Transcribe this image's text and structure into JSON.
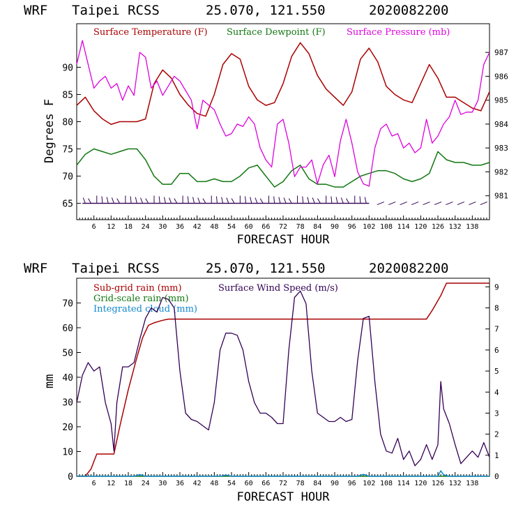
{
  "panels": [
    {
      "header": {
        "model": "WRF",
        "station": "Taipei RCSS",
        "coords": "25.070, 121.550",
        "date": "2020082200"
      },
      "ylabel": "Degrees F",
      "xlabel": "FORECAST HOUR"
    },
    {
      "header": {
        "model": "WRF",
        "station": "Taipei RCSS",
        "coords": "25.070, 121.550",
        "date": "2020082200"
      },
      "ylabel": "mm",
      "xlabel": "FORECAST HOUR"
    }
  ],
  "colors": {
    "red": "#aa0000",
    "green": "#117711",
    "magenta": "#dd00dd",
    "purple": "#330055",
    "blue": "#1188cc",
    "black": "#000000"
  },
  "chart_data": [
    {
      "type": "line",
      "xlim": [
        0,
        144
      ],
      "x_ticks": [
        6,
        12,
        18,
        24,
        30,
        36,
        42,
        48,
        54,
        60,
        66,
        72,
        78,
        84,
        90,
        96,
        102,
        108,
        114,
        120,
        126,
        132,
        138
      ],
      "ylim": [
        62,
        98
      ],
      "y_ticks": [
        65,
        70,
        75,
        80,
        85,
        90
      ],
      "y2lim": [
        980,
        988.2
      ],
      "y2_ticks": [
        981,
        982,
        983,
        984,
        985,
        986,
        987
      ],
      "legend": [
        "Surface Temperature (F)",
        "Surface Dewpoint (F)",
        "Surface Pressure (mb)"
      ],
      "series": [
        {
          "name": "Surface Temperature (F)",
          "axis": "left",
          "color": "red",
          "x": [
            0,
            3,
            6,
            9,
            12,
            15,
            18,
            21,
            24,
            27,
            30,
            33,
            36,
            39,
            42,
            45,
            48,
            51,
            54,
            57,
            60,
            63,
            66,
            69,
            72,
            75,
            78,
            81,
            84,
            87,
            90,
            93,
            96,
            99,
            102,
            105,
            108,
            111,
            114,
            117,
            120,
            123,
            126,
            129,
            132,
            135,
            138,
            141,
            144
          ],
          "values": [
            83,
            84.5,
            82,
            80.5,
            79.5,
            80,
            80,
            80,
            80.5,
            87,
            89.5,
            88,
            85,
            83,
            81.5,
            81,
            85,
            90.5,
            92.5,
            91.5,
            86.5,
            84,
            83,
            83.5,
            87,
            92,
            94.5,
            92.5,
            88.5,
            86,
            84.5,
            83,
            85.5,
            91.5,
            93.5,
            91,
            86.5,
            85,
            84,
            83.5,
            87,
            90.5,
            88,
            84.5,
            84.5,
            83.5,
            82.5,
            82,
            85.5
          ]
        },
        {
          "name": "Surface Dewpoint (F)",
          "axis": "left",
          "color": "green",
          "x": [
            0,
            3,
            6,
            9,
            12,
            15,
            18,
            21,
            24,
            27,
            30,
            33,
            36,
            39,
            42,
            45,
            48,
            51,
            54,
            57,
            60,
            63,
            66,
            69,
            72,
            75,
            78,
            81,
            84,
            87,
            90,
            93,
            96,
            99,
            102,
            105,
            108,
            111,
            114,
            117,
            120,
            123,
            126,
            129,
            132,
            135,
            138,
            141,
            144
          ],
          "values": [
            72,
            74,
            75,
            74.5,
            74,
            74.5,
            75,
            75,
            73,
            70,
            68.5,
            68.5,
            70.5,
            70.5,
            69,
            69,
            69.5,
            69,
            69,
            70,
            71.5,
            72,
            70,
            68,
            69,
            71,
            72,
            69.5,
            68.5,
            68.5,
            68,
            68,
            69,
            70,
            70.5,
            71,
            71,
            70.5,
            69.5,
            69,
            69.5,
            70.5,
            74.5,
            73,
            72.5,
            72.5,
            72,
            72,
            72.5
          ]
        },
        {
          "name": "Surface Pressure (mb)",
          "axis": "right",
          "color": "magenta",
          "x": [
            0,
            2,
            4,
            6,
            8,
            10,
            12,
            14,
            16,
            18,
            20,
            22,
            24,
            26,
            28,
            30,
            32,
            34,
            36,
            38,
            40,
            42,
            44,
            46,
            48,
            50,
            52,
            54,
            56,
            58,
            60,
            62,
            64,
            66,
            68,
            70,
            72,
            74,
            76,
            78,
            80,
            82,
            84,
            86,
            88,
            90,
            92,
            94,
            96,
            98,
            100,
            102,
            104,
            106,
            108,
            110,
            112,
            114,
            116,
            118,
            120,
            122,
            124,
            126,
            128,
            130,
            132,
            134,
            136,
            138,
            140,
            142,
            144
          ],
          "values": [
            986.5,
            987.5,
            986.5,
            985.5,
            985.8,
            986,
            985.5,
            985.7,
            985,
            985.6,
            985.2,
            987,
            986.8,
            985.5,
            985.8,
            985.2,
            985.6,
            986,
            985.8,
            985.4,
            985,
            983.8,
            985,
            984.8,
            984.6,
            984,
            983.5,
            983.6,
            984,
            983.9,
            984.3,
            984,
            983,
            982.5,
            982.2,
            984,
            984.2,
            983.2,
            981.8,
            982.2,
            982.2,
            982.5,
            981.5,
            982.3,
            982.7,
            981.8,
            983.3,
            984.2,
            983.2,
            982,
            981.5,
            981.4,
            983,
            983.8,
            984,
            983.5,
            983.6,
            983,
            983.2,
            982.8,
            983,
            984.2,
            983.2,
            983.5,
            984,
            984.3,
            985,
            984.4,
            984.5,
            984.5,
            985,
            986.5,
            987
          ]
        }
      ]
    },
    {
      "type": "line",
      "xlim": [
        0,
        144
      ],
      "x_ticks": [
        6,
        12,
        18,
        24,
        30,
        36,
        42,
        48,
        54,
        60,
        66,
        72,
        78,
        84,
        90,
        96,
        102,
        108,
        114,
        120,
        126,
        132,
        138
      ],
      "ylim": [
        0,
        80
      ],
      "y_ticks": [
        0,
        10,
        20,
        30,
        40,
        50,
        60,
        70
      ],
      "y2lim": [
        0,
        9.41
      ],
      "y2_ticks": [
        0,
        1,
        2,
        3,
        4,
        5,
        6,
        7,
        8,
        9
      ],
      "legend": [
        "Sub-grid rain (mm)",
        "Grid-scale rain (mm)",
        "Integrated cloud (mm)",
        "Surface Wind Speed (m/s)"
      ],
      "series": [
        {
          "name": "Sub-grid rain (mm)",
          "axis": "left",
          "color": "red",
          "x": [
            0,
            3,
            5,
            7,
            10,
            13,
            15,
            18,
            21,
            23,
            25,
            27,
            30,
            32,
            35,
            122,
            124,
            127,
            129,
            132,
            144
          ],
          "values": [
            0,
            0,
            3,
            9,
            9,
            9,
            20,
            35,
            48,
            56,
            61,
            62,
            63,
            63.5,
            63.5,
            63.5,
            67,
            73,
            78,
            78,
            78
          ]
        },
        {
          "name": "Grid-scale rain (mm)",
          "axis": "left",
          "color": "green",
          "x": [
            0,
            144
          ],
          "values": [
            0,
            0
          ]
        },
        {
          "name": "Integrated cloud (mm)",
          "axis": "left",
          "color": "blue",
          "x": [
            0,
            20,
            22,
            24,
            50,
            52,
            54,
            98,
            100,
            102,
            110,
            126,
            127,
            128,
            130,
            144
          ],
          "values": [
            0,
            0,
            0.7,
            0,
            0,
            0.5,
            0,
            0,
            0.8,
            0,
            0,
            0,
            2.2,
            0.6,
            0,
            0
          ]
        },
        {
          "name": "Surface Wind Speed (m/s)",
          "axis": "right",
          "color": "purple",
          "x": [
            0,
            2,
            4,
            6,
            8,
            10,
            12,
            13,
            14,
            16,
            18,
            20,
            22,
            24,
            26,
            28,
            30,
            32,
            34,
            36,
            38,
            40,
            42,
            44,
            46,
            48,
            50,
            52,
            54,
            56,
            58,
            60,
            62,
            64,
            66,
            68,
            70,
            72,
            74,
            76,
            78,
            80,
            82,
            84,
            86,
            88,
            90,
            92,
            94,
            96,
            98,
            100,
            102,
            104,
            106,
            108,
            110,
            112,
            114,
            116,
            118,
            120,
            122,
            124,
            126,
            127,
            128,
            130,
            132,
            134,
            136,
            138,
            140,
            142,
            144
          ],
          "values": [
            3.5,
            4.8,
            5.4,
            5,
            5.2,
            3.5,
            2.5,
            1.2,
            3.5,
            5.2,
            5.2,
            5.4,
            6.5,
            7.5,
            8,
            7.8,
            8.5,
            8.4,
            8,
            5,
            3,
            2.7,
            2.6,
            2.4,
            2.2,
            3.5,
            6,
            6.8,
            6.8,
            6.7,
            6,
            4.5,
            3.5,
            3,
            3,
            2.8,
            2.5,
            2.5,
            6,
            8.5,
            8.8,
            8.2,
            5,
            3,
            2.8,
            2.6,
            2.6,
            2.8,
            2.6,
            2.7,
            5.5,
            7.5,
            7.6,
            4.5,
            2,
            1.2,
            1.1,
            1.8,
            0.8,
            1.2,
            0.5,
            0.8,
            1.5,
            0.8,
            1.5,
            4.5,
            3.2,
            2.5,
            1.5,
            0.6,
            0.9,
            1.2,
            0.9,
            1.6,
            0.9
          ]
        }
      ]
    }
  ]
}
